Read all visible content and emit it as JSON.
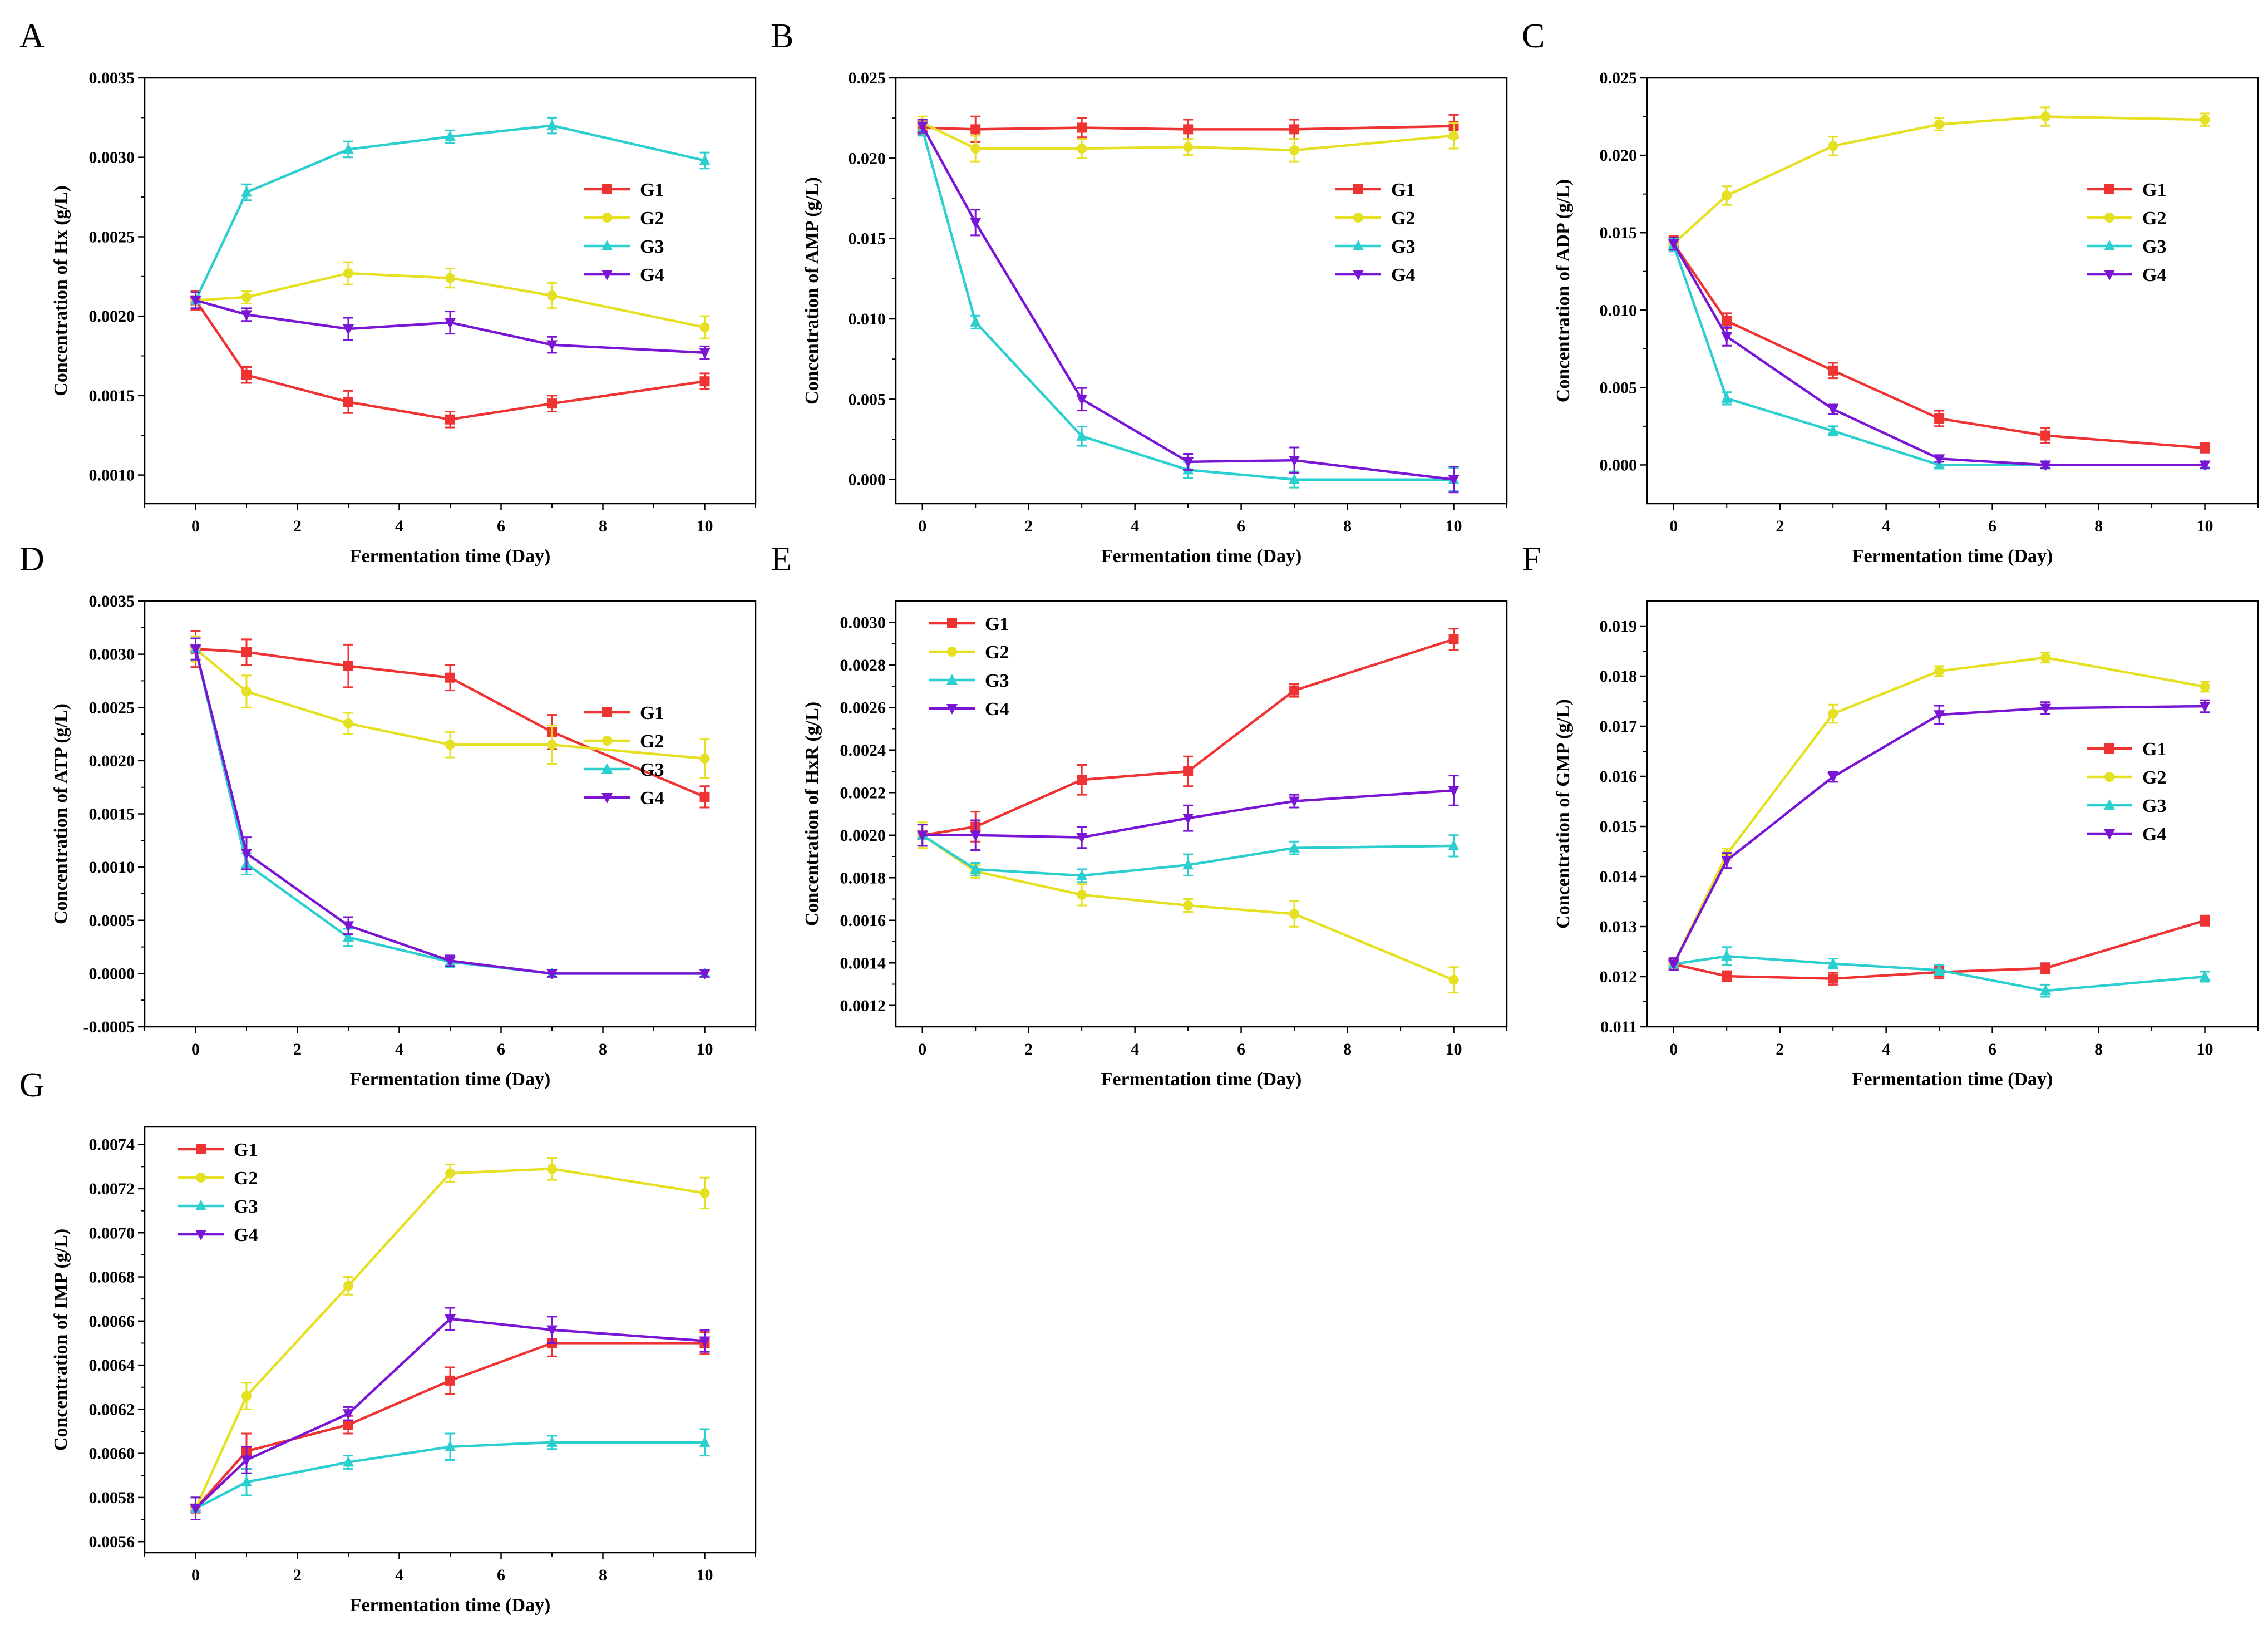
{
  "figure": {
    "colors": {
      "G1": "#ef3232",
      "G2": "#e5e022",
      "G3": "#2ccfcf",
      "G4": "#7b15d6"
    },
    "markers": {
      "G1": "square",
      "G2": "circle",
      "G3": "triangle-up",
      "G4": "triangle-down"
    }
  },
  "chart_data": [
    {
      "panel": "A",
      "type": "line",
      "xlabel": "Fermentation time (Day)",
      "ylabel": "Concentration of Hx (g/L)",
      "xlim": [
        -1,
        11
      ],
      "ylim": [
        0.00082,
        0.0035
      ],
      "xticks": [
        0,
        2,
        4,
        6,
        8,
        10
      ],
      "xtick_labels": [
        "0",
        "2",
        "4",
        "6",
        "8",
        "10"
      ],
      "yticks": [
        0.001,
        0.0015,
        0.002,
        0.0025,
        0.003,
        0.0035
      ],
      "ytick_labels": [
        "0.0010",
        "0.0015",
        "0.0020",
        "0.0025",
        "0.0030",
        "0.0035"
      ],
      "legend": "upper-right-mid",
      "x": [
        0,
        1,
        3,
        5,
        7,
        10
      ],
      "series": [
        {
          "name": "G1",
          "values": [
            0.0021,
            0.00163,
            0.00146,
            0.00135,
            0.00145,
            0.00159
          ],
          "errors": [
            6e-05,
            5e-05,
            7e-05,
            5e-05,
            5e-05,
            5e-05
          ]
        },
        {
          "name": "G2",
          "values": [
            0.0021,
            0.00212,
            0.00227,
            0.00224,
            0.00213,
            0.00193
          ],
          "errors": [
            5e-05,
            4e-05,
            7e-05,
            6e-05,
            8e-05,
            7e-05
          ]
        },
        {
          "name": "G3",
          "values": [
            0.0021,
            0.00278,
            0.00305,
            0.00313,
            0.0032,
            0.00298
          ],
          "errors": [
            5e-05,
            5e-05,
            5e-05,
            4e-05,
            5e-05,
            5e-05
          ]
        },
        {
          "name": "G4",
          "values": [
            0.0021,
            0.00201,
            0.00192,
            0.00196,
            0.00182,
            0.00177
          ],
          "errors": [
            5e-05,
            4e-05,
            7e-05,
            7e-05,
            5e-05,
            4e-05
          ]
        }
      ]
    },
    {
      "panel": "B",
      "type": "line",
      "xlabel": "Fermentation time (Day)",
      "ylabel": "Concentration of AMP (g/L)",
      "xlim": [
        -0.5,
        11
      ],
      "ylim": [
        -0.0015,
        0.025
      ],
      "xticks": [
        0,
        2,
        4,
        6,
        8,
        10
      ],
      "xtick_labels": [
        "0",
        "2",
        "4",
        "6",
        "8",
        "10"
      ],
      "yticks": [
        0,
        0.005,
        0.01,
        0.015,
        0.02,
        0.025
      ],
      "ytick_labels": [
        "0.000",
        "0.005",
        "0.010",
        "0.015",
        "0.020",
        "0.025"
      ],
      "legend": "upper-right-mid",
      "x": [
        0,
        1,
        3,
        5,
        7,
        10
      ],
      "series": [
        {
          "name": "G1",
          "values": [
            0.0219,
            0.0218,
            0.0219,
            0.0218,
            0.0218,
            0.022
          ],
          "errors": [
            0.0004,
            0.0008,
            0.0006,
            0.0006,
            0.0006,
            0.0007
          ]
        },
        {
          "name": "G2",
          "values": [
            0.0222,
            0.0206,
            0.0206,
            0.0207,
            0.0205,
            0.0214
          ],
          "errors": [
            0.0004,
            0.0008,
            0.0006,
            0.0005,
            0.0007,
            0.0008
          ]
        },
        {
          "name": "G3",
          "values": [
            0.0218,
            0.0098,
            0.0027,
            0.0006,
            0.0,
            0.0
          ],
          "errors": [
            0.0004,
            0.0004,
            0.0006,
            0.0005,
            0.0005,
            0.0007
          ]
        },
        {
          "name": "G4",
          "values": [
            0.022,
            0.016,
            0.005,
            0.0011,
            0.0012,
            0.0
          ],
          "errors": [
            0.0004,
            0.0008,
            0.0007,
            0.0005,
            0.0008,
            0.0008
          ]
        }
      ]
    },
    {
      "panel": "C",
      "type": "line",
      "xlabel": "Fermentation time (Day)",
      "ylabel": "Concentration of ADP (g/L)",
      "xlim": [
        -0.5,
        11
      ],
      "ylim": [
        -0.0025,
        0.025
      ],
      "xticks": [
        0,
        2,
        4,
        6,
        8,
        10
      ],
      "xtick_labels": [
        "0",
        "2",
        "4",
        "6",
        "8",
        "10"
      ],
      "yticks": [
        0,
        0.005,
        0.01,
        0.015,
        0.02,
        0.025
      ],
      "ytick_labels": [
        "0.000",
        "0.005",
        "0.010",
        "0.015",
        "0.020",
        "0.025"
      ],
      "legend": "upper-right-mid",
      "x": [
        0,
        1,
        3,
        5,
        7,
        10
      ],
      "series": [
        {
          "name": "G1",
          "values": [
            0.0143,
            0.0093,
            0.0061,
            0.003,
            0.0019,
            0.0011
          ],
          "errors": [
            0.0005,
            0.0005,
            0.0005,
            0.0005,
            0.0005,
            0.0003
          ]
        },
        {
          "name": "G2",
          "values": [
            0.0143,
            0.0174,
            0.0206,
            0.022,
            0.0225,
            0.0223
          ],
          "errors": [
            0.0004,
            0.0006,
            0.0006,
            0.0004,
            0.0006,
            0.0004
          ]
        },
        {
          "name": "G3",
          "values": [
            0.0142,
            0.0043,
            0.0022,
            0.0,
            0.0,
            0.0
          ],
          "errors": [
            0.0004,
            0.0004,
            0.0003,
            0.0002,
            0.0002,
            0.0002
          ]
        },
        {
          "name": "G4",
          "values": [
            0.0143,
            0.0083,
            0.0036,
            0.0004,
            0.0,
            0.0
          ],
          "errors": [
            0.0004,
            0.0006,
            0.0003,
            0.0002,
            0.0002,
            0.0002
          ]
        }
      ]
    },
    {
      "panel": "D",
      "type": "line",
      "xlabel": "Fermentation time (Day)",
      "ylabel": "Concentration of ATP (g/L)",
      "xlim": [
        -1,
        11
      ],
      "ylim": [
        -0.0005,
        0.0035
      ],
      "xticks": [
        0,
        2,
        4,
        6,
        8,
        10
      ],
      "xtick_labels": [
        "0",
        "2",
        "4",
        "6",
        "8",
        "10"
      ],
      "yticks": [
        -0.0005,
        0,
        0.0005,
        0.001,
        0.0015,
        0.002,
        0.0025,
        0.003,
        0.0035
      ],
      "ytick_labels": [
        "-0.0005",
        "0.0000",
        "0.0005",
        "0.0010",
        "0.0015",
        "0.0020",
        "0.0025",
        "0.0030",
        "0.0035"
      ],
      "legend": "upper-right-mid",
      "x": [
        0,
        1,
        3,
        5,
        7,
        10
      ],
      "series": [
        {
          "name": "G1",
          "values": [
            0.00305,
            0.00302,
            0.00289,
            0.00278,
            0.00227,
            0.00166
          ],
          "errors": [
            0.00017,
            0.00012,
            0.0002,
            0.00012,
            0.00016,
            0.0001
          ]
        },
        {
          "name": "G2",
          "values": [
            0.00305,
            0.00265,
            0.00235,
            0.00215,
            0.00215,
            0.00202
          ],
          "errors": [
            0.00012,
            0.00015,
            0.0001,
            0.00012,
            0.00018,
            0.00018
          ]
        },
        {
          "name": "G3",
          "values": [
            0.00305,
            0.00103,
            0.00034,
            0.00011,
            0.0,
            0.0
          ],
          "errors": [
            0.0001,
            0.0001,
            8e-05,
            5e-05,
            3e-05,
            3e-05
          ]
        },
        {
          "name": "G4",
          "values": [
            0.00305,
            0.00113,
            0.00045,
            0.00012,
            0.0,
            0.0
          ],
          "errors": [
            0.0001,
            0.00015,
            8e-05,
            5e-05,
            3e-05,
            3e-05
          ]
        }
      ]
    },
    {
      "panel": "E",
      "type": "line",
      "xlabel": "Fermentation time (Day)",
      "ylabel": "Concentration of HxR (g/L)",
      "xlim": [
        -0.5,
        11
      ],
      "ylim": [
        0.0011,
        0.0031
      ],
      "xticks": [
        0,
        2,
        4,
        6,
        8,
        10
      ],
      "xtick_labels": [
        "0",
        "2",
        "4",
        "6",
        "8",
        "10"
      ],
      "yticks": [
        0.0012,
        0.0014,
        0.0016,
        0.0018,
        0.002,
        0.0022,
        0.0024,
        0.0026,
        0.0028,
        0.003
      ],
      "ytick_labels": [
        "0.0012",
        "0.0014",
        "0.0016",
        "0.0018",
        "0.0020",
        "0.0022",
        "0.0024",
        "0.0026",
        "0.0028",
        "0.0030"
      ],
      "legend": "upper-left",
      "x": [
        0,
        1,
        3,
        5,
        7,
        10
      ],
      "series": [
        {
          "name": "G1",
          "values": [
            0.002,
            0.00204,
            0.00226,
            0.0023,
            0.00268,
            0.00292
          ],
          "errors": [
            5e-05,
            7e-05,
            7e-05,
            7e-05,
            3e-05,
            5e-05
          ]
        },
        {
          "name": "G2",
          "values": [
            0.002,
            0.00183,
            0.00172,
            0.00167,
            0.00163,
            0.00132
          ],
          "errors": [
            6e-05,
            3e-05,
            5e-05,
            3e-05,
            6e-05,
            6e-05
          ]
        },
        {
          "name": "G3",
          "values": [
            0.002,
            0.00184,
            0.00181,
            0.00186,
            0.00194,
            0.00195
          ],
          "errors": [
            5e-05,
            3e-05,
            3e-05,
            5e-05,
            3e-05,
            5e-05
          ]
        },
        {
          "name": "G4",
          "values": [
            0.002,
            0.002,
            0.00199,
            0.00208,
            0.00216,
            0.00221
          ],
          "errors": [
            5e-05,
            7e-05,
            5e-05,
            6e-05,
            3e-05,
            7e-05
          ]
        }
      ]
    },
    {
      "panel": "F",
      "type": "line",
      "xlabel": "Fermentation time (Day)",
      "ylabel": "Concentration of GMP (g/L)",
      "xlim": [
        -0.5,
        11
      ],
      "ylim": [
        0.011,
        0.0195
      ],
      "xticks": [
        0,
        2,
        4,
        6,
        8,
        10
      ],
      "xtick_labels": [
        "0",
        "2",
        "4",
        "6",
        "8",
        "10"
      ],
      "yticks": [
        0.011,
        0.012,
        0.013,
        0.014,
        0.015,
        0.016,
        0.017,
        0.018,
        0.019
      ],
      "ytick_labels": [
        "0.011",
        "0.012",
        "0.013",
        "0.014",
        "0.015",
        "0.016",
        "0.017",
        "0.018",
        "0.019"
      ],
      "legend": "right-mid",
      "x": [
        0,
        1,
        3,
        5,
        7,
        10
      ],
      "series": [
        {
          "name": "G1",
          "values": [
            0.01225,
            0.01201,
            0.01196,
            0.01209,
            0.01217,
            0.01312
          ],
          "errors": [
            0.00012,
            0.0001,
            0.00012,
            0.00012,
            0.0001,
            0.0001
          ]
        },
        {
          "name": "G2",
          "values": [
            0.01225,
            0.01444,
            0.01725,
            0.0181,
            0.01837,
            0.01779
          ],
          "errors": [
            0.00012,
            0.00012,
            0.00018,
            0.0001,
            0.0001,
            0.0001
          ]
        },
        {
          "name": "G3",
          "values": [
            0.01225,
            0.01241,
            0.01226,
            0.01213,
            0.01172,
            0.012
          ],
          "errors": [
            0.00012,
            0.00018,
            0.0001,
            0.0001,
            0.00012,
            0.0001
          ]
        },
        {
          "name": "G4",
          "values": [
            0.01225,
            0.01432,
            0.01599,
            0.01723,
            0.01736,
            0.0174
          ],
          "errors": [
            0.00012,
            0.00015,
            0.0001,
            0.00018,
            0.00012,
            0.00012
          ]
        }
      ]
    },
    {
      "panel": "G",
      "type": "line",
      "xlabel": "Fermentation time (Day)",
      "ylabel": "Concentration of IMP (g/L)",
      "xlim": [
        -1,
        11
      ],
      "ylim": [
        0.00555,
        0.00748
      ],
      "xticks": [
        0,
        2,
        4,
        6,
        8,
        10
      ],
      "xtick_labels": [
        "0",
        "2",
        "4",
        "6",
        "8",
        "10"
      ],
      "yticks": [
        0.0056,
        0.0058,
        0.006,
        0.0062,
        0.0064,
        0.0066,
        0.0068,
        0.007,
        0.0072,
        0.0074
      ],
      "ytick_labels": [
        "0.0056",
        "0.0058",
        "0.0060",
        "0.0062",
        "0.0064",
        "0.0066",
        "0.0068",
        "0.0070",
        "0.0072",
        "0.0074"
      ],
      "legend": "upper-left",
      "x": [
        0,
        1,
        3,
        5,
        7,
        10
      ],
      "series": [
        {
          "name": "G1",
          "values": [
            0.00575,
            0.00601,
            0.00613,
            0.00633,
            0.0065,
            0.0065
          ],
          "errors": [
            5e-05,
            8e-05,
            4e-05,
            6e-05,
            6e-05,
            5e-05
          ]
        },
        {
          "name": "G2",
          "values": [
            0.00575,
            0.00626,
            0.00676,
            0.00727,
            0.00729,
            0.00718
          ],
          "errors": [
            5e-05,
            6e-05,
            4e-05,
            4e-05,
            5e-05,
            7e-05
          ]
        },
        {
          "name": "G3",
          "values": [
            0.00575,
            0.00587,
            0.00596,
            0.00603,
            0.00605,
            0.00605
          ],
          "errors": [
            5e-05,
            6e-05,
            3e-05,
            6e-05,
            3e-05,
            6e-05
          ]
        },
        {
          "name": "G4",
          "values": [
            0.00575,
            0.00597,
            0.00618,
            0.00661,
            0.00656,
            0.00651
          ],
          "errors": [
            5e-05,
            6e-05,
            3e-05,
            5e-05,
            6e-05,
            5e-05
          ]
        }
      ]
    }
  ]
}
